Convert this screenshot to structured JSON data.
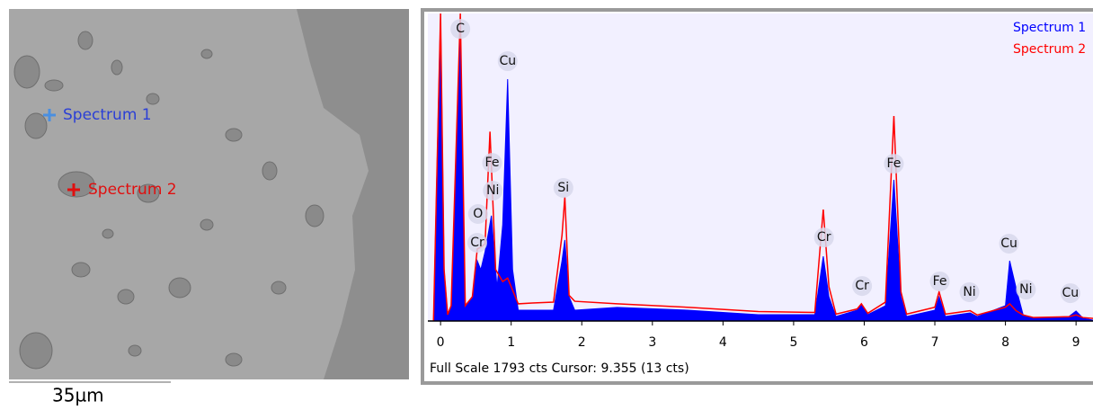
{
  "image": {
    "markers": [
      {
        "label": "Spectrum 1",
        "color": "#2b3fd6"
      },
      {
        "label": "Spectrum 2",
        "color": "#e01010"
      }
    ],
    "scale_bar": "35µm"
  },
  "chart_data": {
    "type": "spectrum",
    "footer": "Full Scale 1793 cts Cursor: 9.355  (13 cts)",
    "xlim": [
      -0.18,
      9.24
    ],
    "ylim": [
      0,
      1793
    ],
    "xticks": [
      0,
      1,
      2,
      3,
      4,
      5,
      6,
      7,
      8,
      9
    ],
    "series": [
      {
        "name": "Spectrum 1",
        "color": "#0000ff",
        "fill": true,
        "x": [
          -0.1,
          0.0,
          0.05,
          0.1,
          0.15,
          0.28,
          0.35,
          0.45,
          0.52,
          0.57,
          0.63,
          0.72,
          0.8,
          0.88,
          0.95,
          1.02,
          1.1,
          1.3,
          1.6,
          1.72,
          1.76,
          1.82,
          1.9,
          2.5,
          3.5,
          4.5,
          5.3,
          5.42,
          5.5,
          5.6,
          5.9,
          5.96,
          6.05,
          6.3,
          6.42,
          6.52,
          6.6,
          7.0,
          7.06,
          7.15,
          7.5,
          7.6,
          8.0,
          8.06,
          8.15,
          8.25,
          8.4,
          8.9,
          9.0,
          9.1,
          9.24
        ],
        "values": [
          0,
          1793,
          299,
          37,
          89,
          1662,
          89,
          141,
          351,
          299,
          404,
          614,
          194,
          561,
          1410,
          299,
          63,
          63,
          63,
          351,
          472,
          141,
          63,
          79,
          63,
          37,
          37,
          377,
          141,
          26,
          63,
          100,
          37,
          89,
          823,
          141,
          26,
          63,
          141,
          26,
          47,
          26,
          89,
          351,
          194,
          37,
          16,
          26,
          58,
          16,
          5
        ]
      },
      {
        "name": "Spectrum 2",
        "color": "#ff0000",
        "fill": false,
        "x": [
          -0.1,
          0.0,
          0.05,
          0.1,
          0.15,
          0.28,
          0.35,
          0.45,
          0.52,
          0.57,
          0.63,
          0.7,
          0.78,
          0.88,
          0.95,
          1.02,
          1.1,
          1.3,
          1.6,
          1.72,
          1.76,
          1.82,
          1.9,
          2.5,
          3.5,
          4.5,
          5.3,
          5.42,
          5.5,
          5.6,
          5.9,
          5.96,
          6.05,
          6.3,
          6.42,
          6.52,
          6.6,
          7.0,
          7.06,
          7.15,
          7.5,
          7.6,
          8.0,
          8.06,
          8.15,
          8.25,
          8.4,
          8.9,
          9.0,
          9.1,
          9.24
        ],
        "values": [
          0,
          1793,
          299,
          37,
          89,
          1793,
          89,
          141,
          420,
          430,
          450,
          1104,
          300,
          230,
          250,
          180,
          100,
          105,
          110,
          500,
          723,
          150,
          115,
          100,
          80,
          55,
          50,
          650,
          200,
          40,
          70,
          100,
          45,
          110,
          1195,
          170,
          40,
          80,
          170,
          40,
          60,
          35,
          80,
          100,
          60,
          35,
          20,
          25,
          35,
          20,
          15
        ]
      }
    ],
    "annotations": [
      {
        "text": "C",
        "x": 0.28,
        "y": 1703
      },
      {
        "text": "Cu",
        "x": 0.95,
        "y": 1515
      },
      {
        "text": "Fe",
        "x": 0.73,
        "y": 922
      },
      {
        "text": "Ni",
        "x": 0.74,
        "y": 760
      },
      {
        "text": "O",
        "x": 0.53,
        "y": 624
      },
      {
        "text": "Cr",
        "x": 0.52,
        "y": 456
      },
      {
        "text": "Si",
        "x": 1.74,
        "y": 776
      },
      {
        "text": "Cr",
        "x": 5.43,
        "y": 487
      },
      {
        "text": "Cr",
        "x": 5.97,
        "y": 204
      },
      {
        "text": "Fe",
        "x": 6.42,
        "y": 917
      },
      {
        "text": "Fe",
        "x": 7.07,
        "y": 231
      },
      {
        "text": "Ni",
        "x": 7.49,
        "y": 168
      },
      {
        "text": "Cu",
        "x": 8.05,
        "y": 451
      },
      {
        "text": "Ni",
        "x": 8.29,
        "y": 183
      },
      {
        "text": "Cu",
        "x": 8.92,
        "y": 162
      }
    ]
  }
}
